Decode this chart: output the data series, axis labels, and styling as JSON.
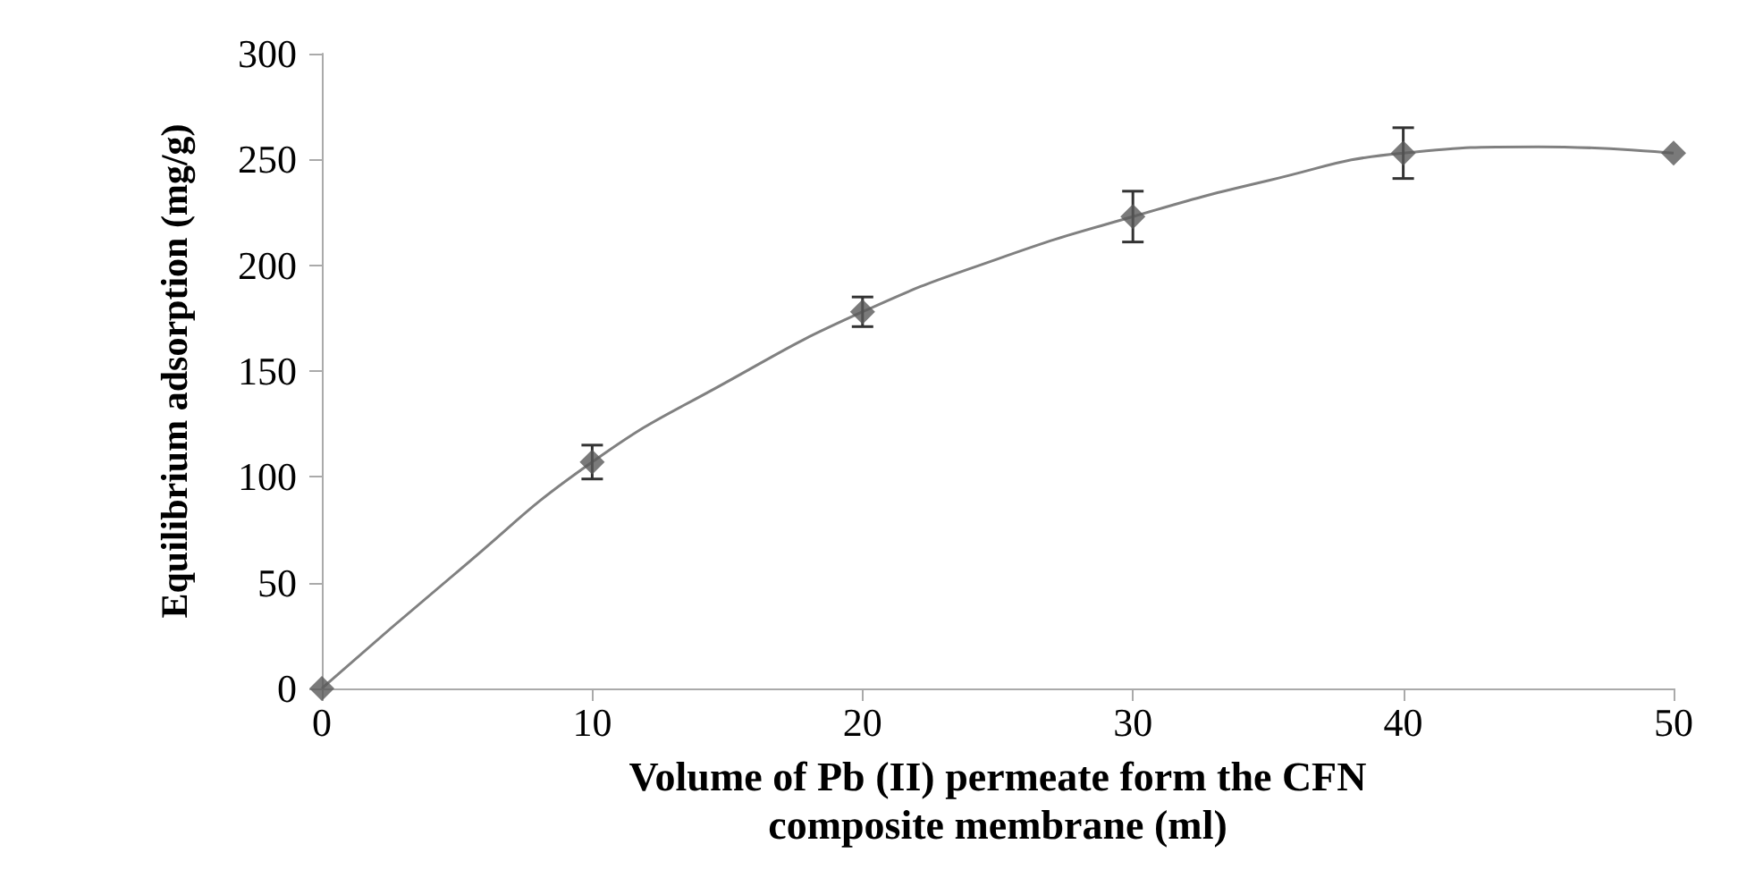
{
  "chart_data": {
    "type": "scatter",
    "xlabel": "Volume of Pb (II) permeate form the CFN\ncomposite membrane (ml)",
    "ylabel": "Equilibrium adsorption (mg/g)",
    "xlim": [
      0,
      50
    ],
    "xticks": [
      0,
      10,
      20,
      30,
      40,
      50
    ],
    "ylim": [
      0,
      300
    ],
    "yticks": [
      0,
      50,
      100,
      150,
      200,
      250,
      300
    ],
    "grid": false,
    "series": [
      {
        "color": "#595959",
        "marker": "diamond",
        "x": [
          0,
          10,
          20,
          30,
          40,
          50
        ],
        "values": [
          0,
          107,
          178,
          223,
          253,
          253
        ],
        "errors": [
          null,
          8,
          7,
          12,
          12,
          null
        ]
      },
      {
        "type": "line",
        "color": "#808080",
        "marker": "none",
        "line_style": "solid",
        "x": [
          0,
          5,
          10,
          15,
          20,
          25,
          30,
          35,
          40,
          45,
          50
        ],
        "values": [
          0,
          55,
          107,
          145,
          178,
          203,
          223,
          240,
          253,
          256,
          253
        ]
      }
    ]
  }
}
